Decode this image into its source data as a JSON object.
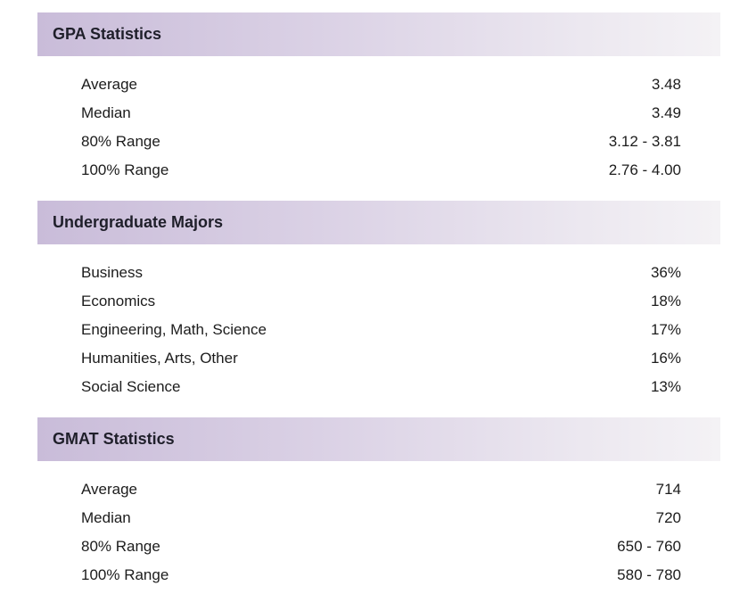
{
  "gpa": {
    "title": "GPA Statistics",
    "rows": [
      {
        "label": "Average",
        "value": "3.48"
      },
      {
        "label": "Median",
        "value": "3.49"
      },
      {
        "label": "80% Range",
        "value": "3.12 - 3.81"
      },
      {
        "label": "100% Range",
        "value": "2.76 - 4.00"
      }
    ]
  },
  "majors": {
    "title": "Undergraduate Majors",
    "rows": [
      {
        "label": "Business",
        "value": "36%"
      },
      {
        "label": "Economics",
        "value": "18%"
      },
      {
        "label": "Engineering, Math, Science",
        "value": "17%"
      },
      {
        "label": "Humanities, Arts, Other",
        "value": "16%"
      },
      {
        "label": "Social Science",
        "value": "13%"
      }
    ]
  },
  "gmat": {
    "title": "GMAT Statistics",
    "rows": [
      {
        "label": "Average",
        "value": "714"
      },
      {
        "label": "Median",
        "value": "720"
      },
      {
        "label": "80% Range",
        "value": "650 - 760"
      },
      {
        "label": "100% Range",
        "value": "580 - 780"
      }
    ]
  }
}
